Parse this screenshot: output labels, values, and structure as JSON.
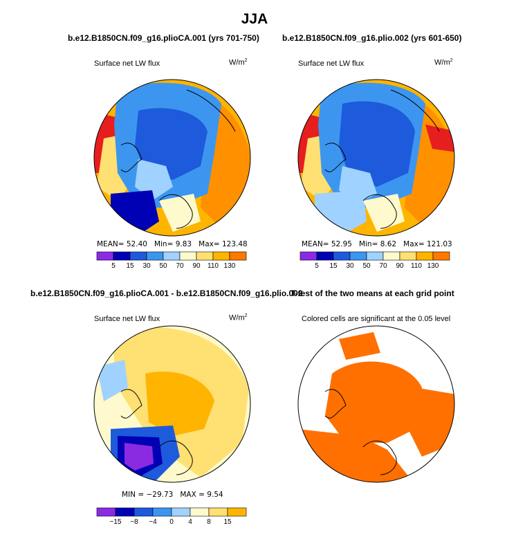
{
  "main_title": "JJA",
  "panels": [
    {
      "title": "b.e12.B1850CN.f09_g16.plioCA.001 (yrs 701-750)",
      "variable": "Surface net LW flux",
      "units": "W/m",
      "units_exp": "2",
      "stats": {
        "mean_label": "MEAN=",
        "mean": "52.40",
        "min_label": "Min=",
        "min": "9.83",
        "max_label": "Max=",
        "max": "123.48"
      },
      "colorbar": [
        "5",
        "15",
        "30",
        "50",
        "70",
        "90",
        "110",
        "130"
      ]
    },
    {
      "title": "b.e12.B1850CN.f09_g16.plio.002 (yrs 601-650)",
      "variable": "Surface net LW flux",
      "units": "W/m",
      "units_exp": "2",
      "stats": {
        "mean_label": "MEAN=",
        "mean": "52.95",
        "min_label": "Min=",
        "min": "8.62",
        "max_label": "Max=",
        "max": "121.03"
      },
      "colorbar": [
        "5",
        "15",
        "30",
        "50",
        "70",
        "90",
        "110",
        "130"
      ]
    },
    {
      "title": "b.e12.B1850CN.f09_g16.plioCA.001 - b.e12.B1850CN.f09_g16.plio.002",
      "variable": "Surface net LW flux",
      "units": "W/m",
      "units_exp": "2",
      "stats": {
        "min_label": "MIN =",
        "min": "−29.73",
        "max_label": "MAX =",
        "max": "9.54"
      },
      "colorbar": [
        "−15",
        "−8",
        "−4",
        "0",
        "4",
        "8",
        "15"
      ]
    },
    {
      "title": "T-test of the two means at each grid point",
      "note": "Colored cells are significant at the 0.05 level"
    }
  ],
  "colors": {
    "abs_scale": [
      "#8a2be2",
      "#0000b4",
      "#1e5adc",
      "#3c96f0",
      "#a0d2ff",
      "#fffacd",
      "#ffe073",
      "#ffb400",
      "#ff7800",
      "#e61e1e",
      "#aa0a0a",
      "#ff69b4"
    ],
    "diff_scale": [
      "#8a2be2",
      "#0000b4",
      "#1e5adc",
      "#3c96f0",
      "#a0d2ff",
      "#fffacd",
      "#ffe073",
      "#ffb400",
      "#ff7800",
      "#e61e1e",
      "#aa0a0a",
      "#ff69b4"
    ],
    "significance": "#ff7000"
  },
  "chart_data": [
    {
      "type": "heatmap",
      "title": "b.e12.B1850CN.f09_g16.plioCA.001 (yrs 701-750)",
      "variable": "Surface net LW flux",
      "units": "W/m2",
      "mean": 52.4,
      "min": 9.83,
      "max": 123.48,
      "levels": [
        5,
        15,
        30,
        50,
        70,
        90,
        110,
        130
      ]
    },
    {
      "type": "heatmap",
      "title": "b.e12.B1850CN.f09_g16.plio.002 (yrs 601-650)",
      "variable": "Surface net LW flux",
      "units": "W/m2",
      "mean": 52.95,
      "min": 8.62,
      "max": 121.03,
      "levels": [
        5,
        15,
        30,
        50,
        70,
        90,
        110,
        130
      ]
    },
    {
      "type": "heatmap",
      "title": "b.e12.B1850CN.f09_g16.plioCA.001 - b.e12.B1850CN.f09_g16.plio.002",
      "variable": "Surface net LW flux",
      "units": "W/m2",
      "min": -29.73,
      "max": 9.54,
      "levels": [
        -15,
        -8,
        -4,
        0,
        4,
        8,
        15
      ]
    },
    {
      "type": "heatmap",
      "title": "T-test of the two means at each grid point",
      "note": "Colored cells are significant at the 0.05 level"
    }
  ]
}
